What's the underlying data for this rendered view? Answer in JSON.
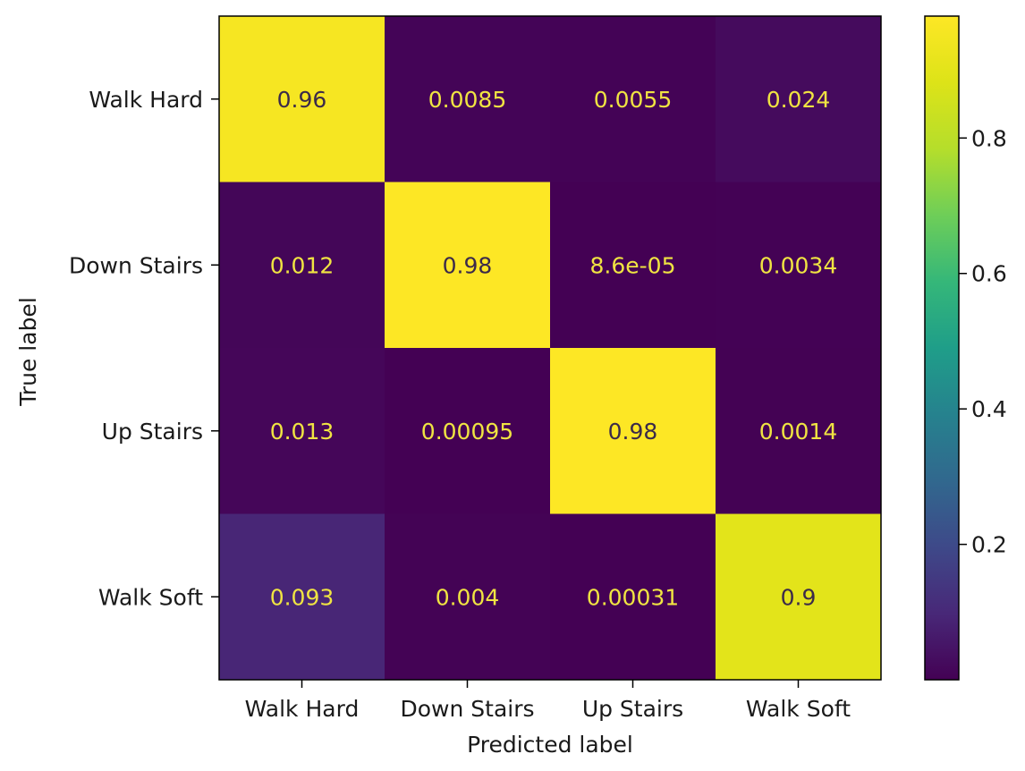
{
  "chart_data": {
    "type": "heatmap",
    "title": "",
    "xlabel": "Predicted label",
    "ylabel": "True label",
    "x_categories": [
      "Walk Hard",
      "Down Stairs",
      "Up Stairs",
      "Walk Soft"
    ],
    "y_categories": [
      "Walk Hard",
      "Down Stairs",
      "Up Stairs",
      "Walk Soft"
    ],
    "values": [
      [
        0.96,
        0.0085,
        0.0055,
        0.024
      ],
      [
        0.012,
        0.98,
        8.6e-05,
        0.0034
      ],
      [
        0.013,
        0.00095,
        0.98,
        0.0014
      ],
      [
        0.093,
        0.004,
        0.00031,
        0.9
      ]
    ],
    "cell_labels": [
      [
        "0.96",
        "0.0085",
        "0.0055",
        "0.024"
      ],
      [
        "0.012",
        "0.98",
        "8.6e-05",
        "0.0034"
      ],
      [
        "0.013",
        "0.00095",
        "0.98",
        "0.0014"
      ],
      [
        "0.093",
        "0.004",
        "0.00031",
        "0.9"
      ]
    ],
    "colormap": "viridis",
    "colorbar": {
      "range": [
        8.6e-05,
        0.98
      ],
      "ticks": [
        0.2,
        0.4,
        0.6,
        0.8
      ],
      "tick_labels": [
        "0.2",
        "0.4",
        "0.6",
        "0.8"
      ]
    },
    "grid": false
  }
}
